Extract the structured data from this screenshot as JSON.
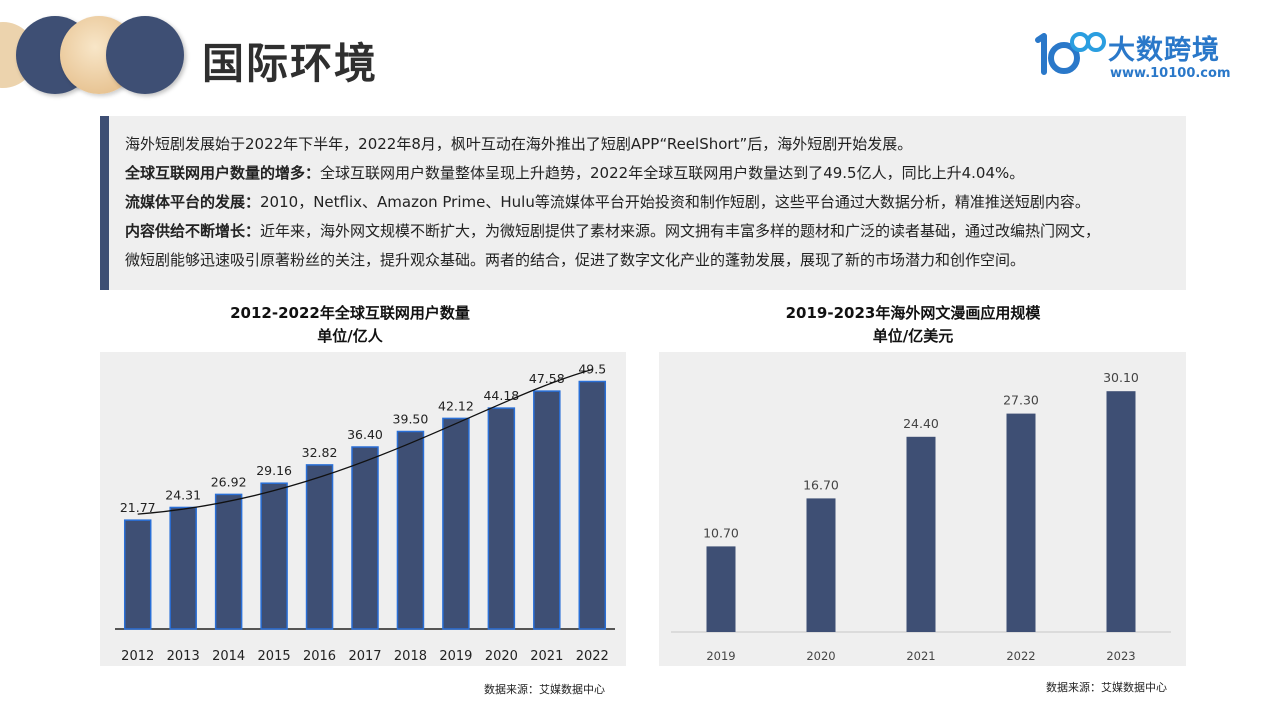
{
  "header": {
    "title": "国际环境",
    "logo": {
      "name": "大数跨境",
      "url": "www.10100.com"
    }
  },
  "intro": {
    "line1": "海外短剧发展始于2022年下半年，2022年8月，枫叶互动在海外推出了短剧APP“ReelShort”后，海外短剧开始发展。",
    "item1_label": "全球互联网用户数量的增多：",
    "item1_text": "全球互联网用户数量整体呈现上升趋势，2022年全球互联网用户数量达到了49.5亿人，同比上升4.04%。",
    "item2_label": "流媒体平台的发展：",
    "item2_text": "2010，Netflix、Amazon Prime、Hulu等流媒体平台开始投资和制作短剧，这些平台通过大数据分析，精准推送短剧内容。",
    "item3_label": "内容供给不断增长：",
    "item3_text": "近年来，海外网文规模不断扩大，为微短剧提供了素材来源。网文拥有丰富多样的题材和广泛的读者基础，通过改编热门网文，",
    "item3_text2": "微短剧能够迅速吸引原著粉丝的关注，提升观众基础。两者的结合，促进了数字文化产业的蓬勃发展，展现了新的市场潜力和创作空间。"
  },
  "chart_data": [
    {
      "type": "bar",
      "title": "2012-2022年全球互联网用户数量",
      "subtitle": "单位/亿人",
      "categories": [
        "2012",
        "2013",
        "2014",
        "2015",
        "2016",
        "2017",
        "2018",
        "2019",
        "2020",
        "2021",
        "2022"
      ],
      "values": [
        21.77,
        24.31,
        26.92,
        29.16,
        32.82,
        36.4,
        39.5,
        42.12,
        44.18,
        47.58,
        49.5
      ],
      "labels": [
        "21.77",
        "24.31",
        "26.92",
        "29.16",
        "32.82",
        "36.40",
        "39.50",
        "42.12",
        "44.18",
        "47.58",
        "49.5"
      ],
      "trendline": true,
      "ylim": [
        0,
        55
      ],
      "grid": false,
      "bar_color": "#3e4f74",
      "source": "数据来源：艾媒数据中心"
    },
    {
      "type": "bar",
      "title": "2019-2023年海外网文漫画应用规模",
      "subtitle": "单位/亿美元",
      "categories": [
        "2019",
        "2020",
        "2021",
        "2022",
        "2023"
      ],
      "values": [
        10.7,
        16.7,
        24.4,
        27.3,
        30.1
      ],
      "labels": [
        "10.70",
        "16.70",
        "24.40",
        "27.30",
        "30.10"
      ],
      "ylim": [
        0,
        35
      ],
      "grid": false,
      "bar_color": "#3e4f74",
      "source": "数据来源：艾媒数据中心"
    }
  ]
}
